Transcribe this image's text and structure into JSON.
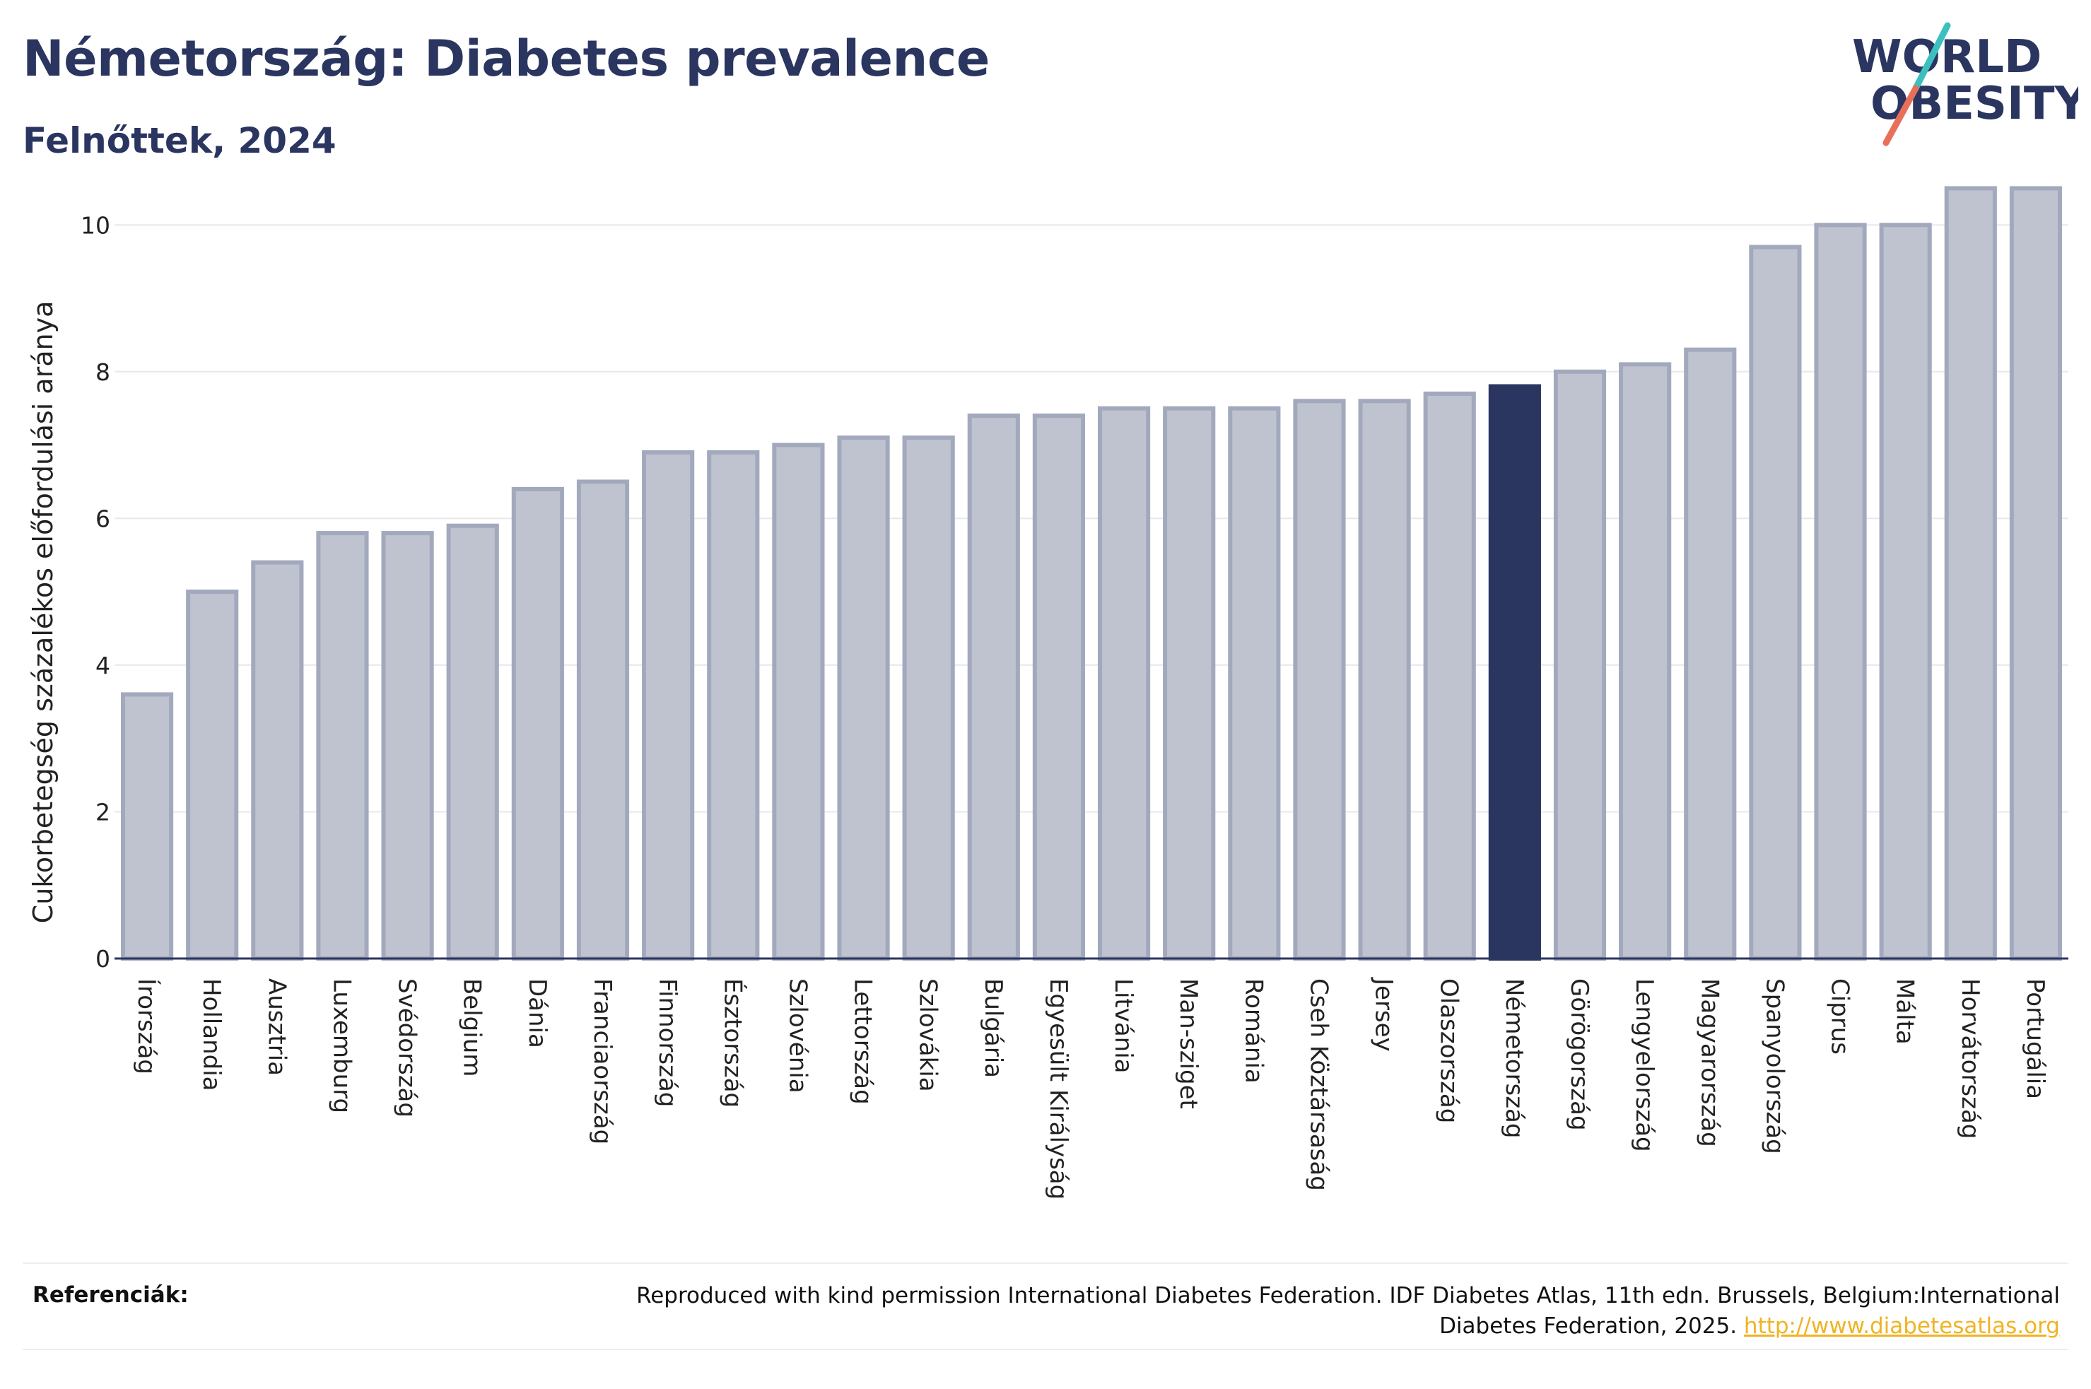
{
  "header": {
    "title": "Németország: Diabetes prevalence",
    "subtitle": "Felnőttek, 2024"
  },
  "logo": {
    "line1": "WORLD",
    "line2": "OBESITY",
    "colors": {
      "text": "#2a3560",
      "slash_teal": "#3bbfbf",
      "slash_coral": "#e8705a"
    }
  },
  "colors": {
    "bar_default": "#bfc3d0",
    "bar_border": "#a3a9bd",
    "bar_highlight": "#2a3560",
    "grid": "#e6e8ee",
    "axis": "#2a3560"
  },
  "chart_data": {
    "type": "bar",
    "title": "Németország: Diabetes prevalence",
    "subtitle": "Felnőttek, 2024",
    "xlabel": "",
    "ylabel": "Cukorbetegség százalékos előfordulási aránya",
    "ylim": [
      0,
      10.6
    ],
    "yticks": [
      0,
      2,
      4,
      6,
      8,
      10
    ],
    "grid": true,
    "highlight": "Németország",
    "categories": [
      "Írország",
      "Hollandia",
      "Ausztria",
      "Luxemburg",
      "Svédország",
      "Belgium",
      "Dánia",
      "Franciaország",
      "Finnország",
      "Észtország",
      "Szlovénia",
      "Lettország",
      "Szlovákia",
      "Bulgária",
      "Egyesült Királyság",
      "Litvánia",
      "Man-sziget",
      "Románia",
      "Cseh Köztársaság",
      "Jersey",
      "Olaszország",
      "Németország",
      "Görögország",
      "Lengyelország",
      "Magyarország",
      "Spanyolország",
      "Ciprus",
      "Málta",
      "Horvátország",
      "Portugália"
    ],
    "values": [
      3.6,
      5.0,
      5.4,
      5.8,
      5.8,
      5.9,
      6.4,
      6.5,
      6.9,
      6.9,
      7.0,
      7.1,
      7.1,
      7.4,
      7.4,
      7.5,
      7.5,
      7.5,
      7.6,
      7.6,
      7.7,
      7.8,
      8.0,
      8.1,
      8.3,
      9.7,
      10.0,
      10.0,
      10.5,
      10.5
    ]
  },
  "footer": {
    "label": "Referenciák:",
    "text": "Reproduced with kind permission International Diabetes Federation. IDF Diabetes Atlas, 11th edn. Brussels, Belgium:International Diabetes Federation, 2025.",
    "link": "http://www.diabetesatlas.org"
  }
}
